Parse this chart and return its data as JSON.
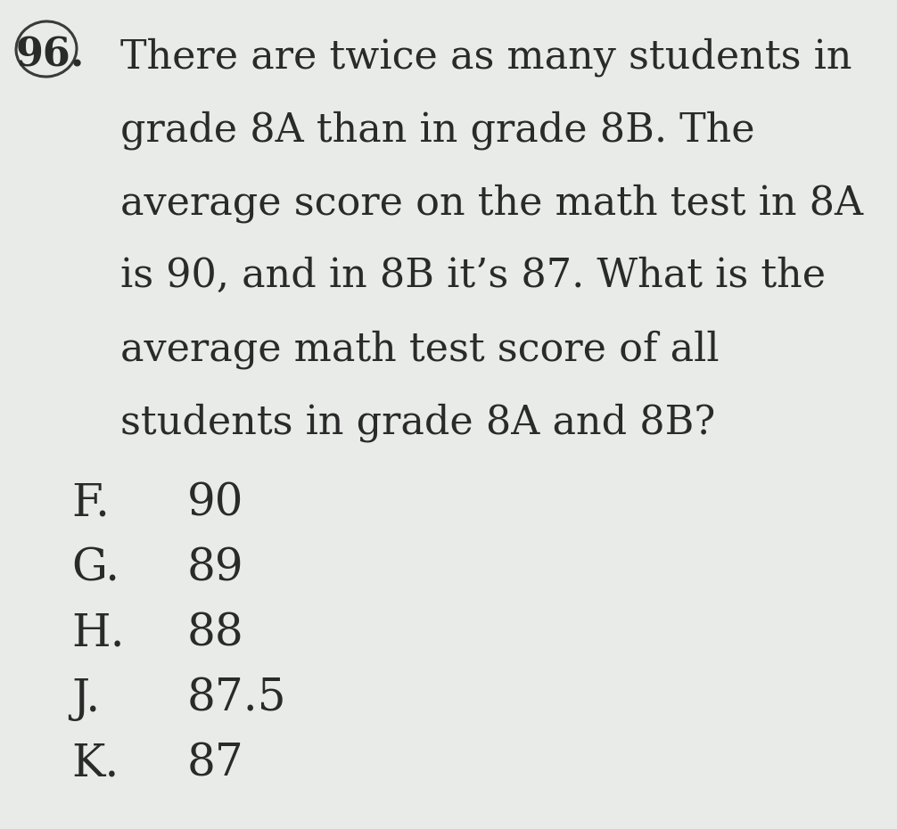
{
  "background_color": "#e8ebe8",
  "question_number": "96.",
  "question_text_lines": [
    "There are twice as many students in",
    "grade 8A than in grade 8B. The",
    "average score on the math test in 8A",
    "is 90, and in 8B it’s 87. What is the",
    "average math test score of all",
    "students in grade 8A and 8B?"
  ],
  "choices": [
    {
      "letter": "F.",
      "value": "90"
    },
    {
      "letter": "G.",
      "value": "89"
    },
    {
      "letter": "H.",
      "value": "88"
    },
    {
      "letter": "J.",
      "value": "87.5"
    },
    {
      "letter": "K.",
      "value": "87"
    }
  ],
  "text_color": "#2a2a2a",
  "font_size_question": 32,
  "font_size_number": 32,
  "font_size_choices": 36,
  "figsize": [
    10.06,
    9.3
  ],
  "dpi": 100
}
